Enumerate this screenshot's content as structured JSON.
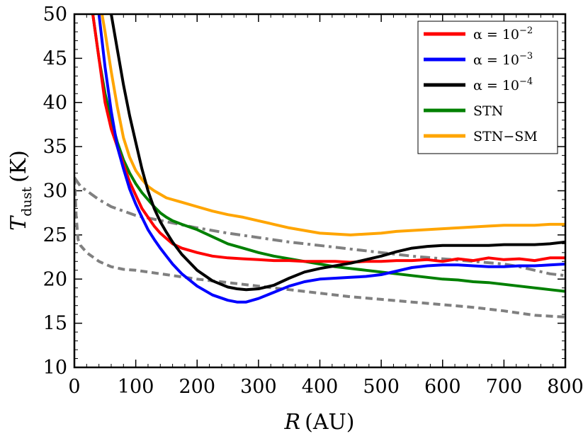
{
  "chart_data": {
    "type": "line",
    "xlabel": "R (AU)",
    "xlabel_var": "R",
    "xlabel_unit": "(AU)",
    "ylabel": "T_dust (K)",
    "ylabel_var": "T",
    "ylabel_sub": "dust",
    "ylabel_unit": "(K)",
    "xlim": [
      0,
      800
    ],
    "ylim": [
      10,
      50
    ],
    "xticks": [
      0,
      100,
      200,
      300,
      400,
      500,
      600,
      700,
      800
    ],
    "yticks": [
      10,
      15,
      20,
      25,
      30,
      35,
      40,
      45,
      50
    ],
    "legend_position": "top-right",
    "series": [
      {
        "name": "α = 10⁻²",
        "legend_base": "α = 10",
        "legend_exp": "−2",
        "color": "#ff0000",
        "style": "solid",
        "x": [
          30,
          40,
          50,
          60,
          70,
          80,
          90,
          100,
          110,
          120,
          130,
          140,
          150,
          160,
          175,
          200,
          225,
          250,
          275,
          300,
          325,
          350,
          375,
          400,
          425,
          450,
          475,
          500,
          525,
          550,
          575,
          600,
          625,
          650,
          675,
          700,
          725,
          750,
          775,
          800
        ],
        "y": [
          50,
          45,
          40,
          37,
          35,
          33,
          31,
          29.5,
          28,
          27,
          26,
          25.2,
          24.6,
          24,
          23.5,
          23,
          22.6,
          22.4,
          22.3,
          22.2,
          22.1,
          22.1,
          22.0,
          22.0,
          22.0,
          21.9,
          22.0,
          22.0,
          22.1,
          22.1,
          22.2,
          22.0,
          22.3,
          22.1,
          22.4,
          22.2,
          22.3,
          22.1,
          22.4,
          22.4
        ]
      },
      {
        "name": "α = 10⁻³",
        "legend_base": "α = 10",
        "legend_exp": "−3",
        "color": "#0000ff",
        "style": "solid",
        "x": [
          40,
          50,
          60,
          70,
          80,
          90,
          100,
          110,
          120,
          130,
          140,
          150,
          160,
          175,
          200,
          225,
          250,
          265,
          280,
          300,
          325,
          350,
          375,
          400,
          425,
          450,
          475,
          500,
          525,
          550,
          575,
          600,
          625,
          650,
          675,
          700,
          725,
          750,
          775,
          800
        ],
        "y": [
          50,
          44,
          39,
          35,
          32.5,
          30.2,
          28.5,
          27,
          25.6,
          24.5,
          23.5,
          22.6,
          21.7,
          20.6,
          19.2,
          18.2,
          17.6,
          17.4,
          17.4,
          17.8,
          18.5,
          19.2,
          19.7,
          20.0,
          20.1,
          20.2,
          20.3,
          20.5,
          20.9,
          21.3,
          21.5,
          21.6,
          21.6,
          21.5,
          21.4,
          21.4,
          21.5,
          21.5,
          21.6,
          21.7
        ]
      },
      {
        "name": "α = 10⁻⁴",
        "legend_base": "α = 10",
        "legend_exp": "−4",
        "color": "#000000",
        "style": "solid",
        "x": [
          60,
          70,
          80,
          90,
          100,
          110,
          120,
          130,
          140,
          150,
          160,
          175,
          200,
          225,
          250,
          265,
          280,
          300,
          325,
          350,
          375,
          400,
          425,
          450,
          475,
          500,
          525,
          550,
          575,
          600,
          625,
          650,
          675,
          700,
          725,
          750,
          775,
          800
        ],
        "y": [
          50,
          46,
          42,
          38.5,
          35.5,
          32.5,
          30,
          28,
          26.5,
          25.3,
          24.2,
          22.8,
          21,
          19.8,
          19.1,
          18.9,
          18.8,
          18.9,
          19.3,
          20.1,
          20.8,
          21.2,
          21.5,
          21.8,
          22.2,
          22.6,
          23.1,
          23.5,
          23.7,
          23.8,
          23.8,
          23.8,
          23.8,
          23.9,
          23.9,
          23.9,
          24.0,
          24.2
        ]
      },
      {
        "name": "STN",
        "legend_base": "STN",
        "legend_exp": "",
        "color": "#008000",
        "style": "solid",
        "x": [
          30,
          40,
          50,
          60,
          70,
          80,
          90,
          100,
          110,
          120,
          130,
          140,
          150,
          160,
          175,
          200,
          225,
          250,
          275,
          300,
          325,
          350,
          375,
          400,
          425,
          450,
          475,
          500,
          525,
          550,
          575,
          600,
          625,
          650,
          675,
          700,
          725,
          750,
          775,
          800
        ],
        "y": [
          50,
          45,
          41,
          38,
          35.5,
          33.5,
          32,
          30.8,
          29.8,
          29,
          28.2,
          27.5,
          27,
          26.6,
          26.2,
          25.6,
          24.8,
          24,
          23.5,
          23.0,
          22.6,
          22.3,
          22.0,
          21.7,
          21.4,
          21.2,
          21.0,
          20.8,
          20.6,
          20.4,
          20.2,
          20.0,
          19.9,
          19.7,
          19.6,
          19.4,
          19.2,
          19.0,
          18.8,
          18.6
        ]
      },
      {
        "name": "STN-SM",
        "legend_base": "STN−SM",
        "legend_exp": "",
        "color": "#ffa500",
        "style": "solid",
        "x": [
          45,
          50,
          60,
          70,
          80,
          90,
          100,
          110,
          120,
          130,
          140,
          150,
          160,
          175,
          200,
          225,
          250,
          275,
          300,
          325,
          350,
          375,
          400,
          425,
          450,
          475,
          500,
          525,
          550,
          575,
          600,
          625,
          650,
          675,
          700,
          725,
          750,
          775,
          800
        ],
        "y": [
          50,
          48,
          43.5,
          39.5,
          36,
          33.8,
          32.3,
          31.3,
          30.5,
          30,
          29.6,
          29.2,
          29,
          28.7,
          28.2,
          27.7,
          27.3,
          27.0,
          26.6,
          26.2,
          25.8,
          25.5,
          25.2,
          25.1,
          25.0,
          25.1,
          25.2,
          25.4,
          25.5,
          25.6,
          25.7,
          25.8,
          25.9,
          26.0,
          26.1,
          26.1,
          26.1,
          26.2,
          26.2
        ]
      },
      {
        "name": "gray dash-dot",
        "color": "#808080",
        "style": "dashdot",
        "x": [
          0,
          5,
          10,
          20,
          40,
          60,
          80,
          100,
          150,
          200,
          250,
          300,
          350,
          400,
          450,
          500,
          550,
          600,
          650,
          700,
          725,
          750,
          775,
          800
        ],
        "y": [
          31.5,
          31,
          30.5,
          30,
          29,
          28.2,
          27.7,
          27.2,
          26.5,
          25.8,
          25.2,
          24.7,
          24.2,
          23.8,
          23.4,
          23.0,
          22.6,
          22.3,
          22.0,
          21.7,
          21.4,
          21.0,
          20.6,
          20.4
        ]
      },
      {
        "name": "gray dashed",
        "color": "#808080",
        "style": "dashed",
        "x": [
          0,
          3,
          6,
          10,
          20,
          40,
          60,
          80,
          100,
          150,
          200,
          250,
          300,
          350,
          400,
          450,
          500,
          550,
          600,
          650,
          700,
          750,
          775,
          800
        ],
        "y": [
          31.5,
          27,
          24.5,
          23.8,
          23,
          22,
          21.4,
          21.1,
          21,
          20.5,
          20,
          19.6,
          19.2,
          18.8,
          18.4,
          18.0,
          17.7,
          17.4,
          17.1,
          16.8,
          16.4,
          15.9,
          15.8,
          15.7
        ]
      }
    ]
  }
}
